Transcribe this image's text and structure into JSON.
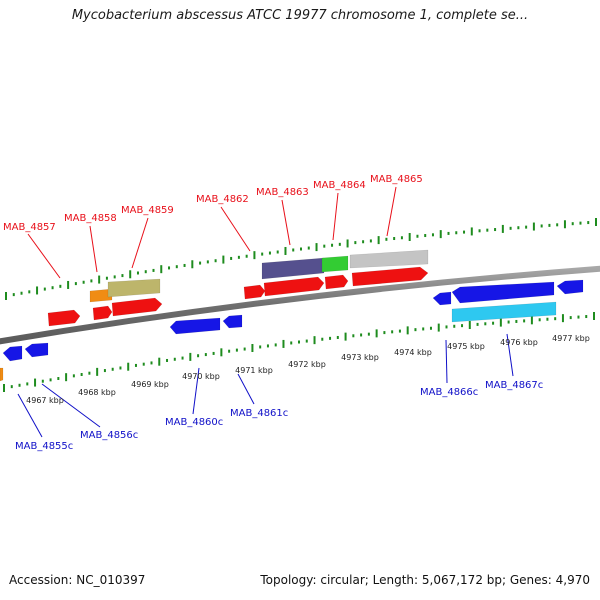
{
  "title": "Mycobacterium abscessus ATCC 19977 chromosome 1, complete se...",
  "footer": {
    "accession": "Accession: NC_010397",
    "summary": "Topology: circular; Length: 5,067,172 bp; Genes: 4,970"
  },
  "colors": {
    "forward_label": "#e8101a",
    "reverse_label": "#1010c8",
    "backbone": "#7d7d7d",
    "tick": "#1e8c1e"
  },
  "tick_labels": [
    "4967 kbp",
    "4968 kbp",
    "4969 kbp",
    "4970 kbp",
    "4971 kbp",
    "4972 kbp",
    "4973 kbp",
    "4974 kbp",
    "4975 kbp",
    "4976 kbp",
    "4977 kbp"
  ],
  "forward_labels": [
    "MAB_4857",
    "MAB_4858",
    "MAB_4859",
    "MAB_4862",
    "MAB_4863",
    "MAB_4864",
    "MAB_4865"
  ],
  "reverse_labels": [
    "MAB_4855c",
    "MAB_4856c",
    "MAB_4860c",
    "MAB_4861c",
    "MAB_4866c",
    "MAB_4867c"
  ],
  "features": [
    {
      "color": "#ee1111"
    },
    {
      "color": "#ee1111"
    },
    {
      "color": "#ee1111"
    },
    {
      "color": "#ee1111"
    },
    {
      "color": "#ee1111"
    },
    {
      "color": "#ee1111"
    },
    {
      "color": "#ee1111"
    },
    {
      "color": "#f08c14"
    },
    {
      "color": "#bdb56b"
    },
    {
      "color": "#55508e"
    },
    {
      "color": "#33cc33"
    },
    {
      "color": "#c4c4c4"
    },
    {
      "color": "#1616e6"
    },
    {
      "color": "#1616e6"
    },
    {
      "color": "#1616e6"
    },
    {
      "color": "#1616e6"
    },
    {
      "color": "#1616e6"
    },
    {
      "color": "#1616e6"
    },
    {
      "color": "#1616e6"
    },
    {
      "color": "#2ec8f0"
    },
    {
      "color": "#f08c14"
    }
  ]
}
